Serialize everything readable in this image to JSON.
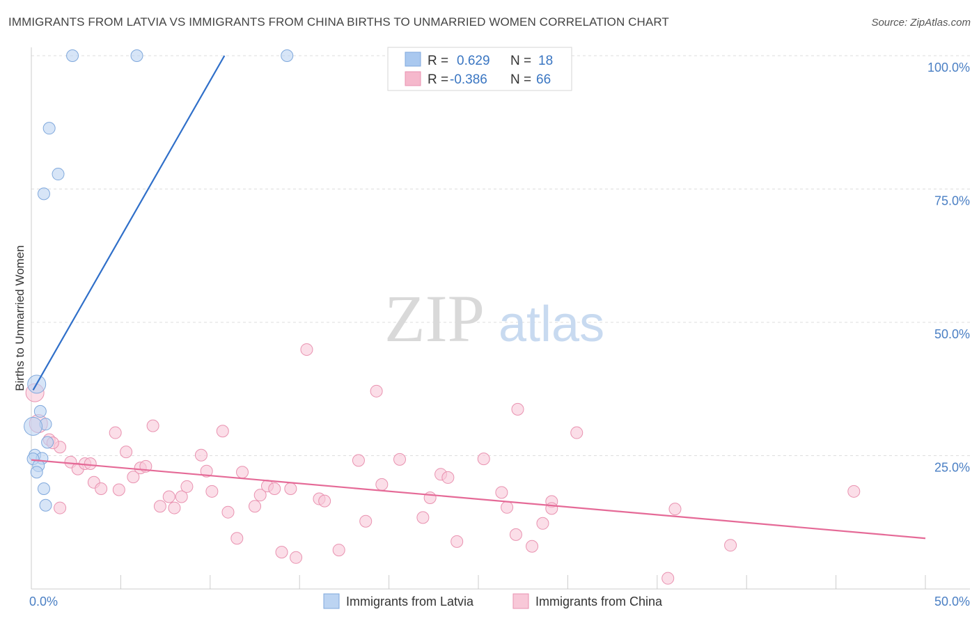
{
  "title": "IMMIGRANTS FROM LATVIA VS IMMIGRANTS FROM CHINA BIRTHS TO UNMARRIED WOMEN CORRELATION CHART",
  "source": "Source: ZipAtlas.com",
  "watermark": {
    "zip": "ZIP",
    "atlas": "atlas"
  },
  "legend": {
    "rows": [
      {
        "r_label": "R =",
        "r_value": "0.629",
        "n_label": "N =",
        "n_value": "18",
        "color": "#a9c8ef"
      },
      {
        "r_label": "R =",
        "r_value": "-0.386",
        "n_label": "N =",
        "n_value": "66",
        "color": "#f5b8cc"
      }
    ]
  },
  "colors": {
    "latvia_fill": "#bcd4f2",
    "latvia_stroke": "#7fa8dc",
    "latvia_line": "#2f6fc9",
    "china_fill": "#f8c8d8",
    "china_stroke": "#e992b0",
    "china_line": "#e56a97",
    "grid": "#dddddd",
    "axis_label": "#4a7fc4"
  },
  "chart_data": {
    "type": "scatter",
    "xlabel": "",
    "ylabel": "Births to Unmarried Women",
    "xlim": [
      0,
      50
    ],
    "ylim": [
      0,
      100
    ],
    "x_tick_labels": [
      "0.0%",
      "50.0%"
    ],
    "y_ticks": [
      25,
      50,
      75,
      100
    ],
    "y_tick_labels": [
      "25.0%",
      "50.0%",
      "75.0%",
      "100.0%"
    ],
    "grid": true,
    "series": [
      {
        "name": "Immigrants from Latvia",
        "R": 0.629,
        "N": 18,
        "points": [
          [
            2.3,
            100
          ],
          [
            5.9,
            100
          ],
          [
            14.3,
            100
          ],
          [
            1.0,
            86.4
          ],
          [
            1.5,
            77.8
          ],
          [
            0.7,
            74.1
          ],
          [
            0.3,
            38.4
          ],
          [
            0.5,
            33.3
          ],
          [
            0.8,
            30.9
          ],
          [
            0.1,
            30.5
          ],
          [
            0.9,
            27.5
          ],
          [
            0.2,
            25.1
          ],
          [
            0.6,
            24.5
          ],
          [
            0.1,
            24.4
          ],
          [
            0.4,
            23.1
          ],
          [
            0.3,
            21.9
          ],
          [
            0.7,
            18.8
          ],
          [
            0.8,
            15.7
          ]
        ],
        "trend": {
          "x1": 0.1,
          "y1": 37.3,
          "x2": 10.8,
          "y2": 100
        }
      },
      {
        "name": "Immigrants from China",
        "R": -0.386,
        "N": 66,
        "points": [
          [
            0.2,
            36.8
          ],
          [
            0.4,
            31.0
          ],
          [
            1.0,
            28.0
          ],
          [
            1.6,
            26.6
          ],
          [
            1.2,
            27.4
          ],
          [
            2.2,
            23.8
          ],
          [
            2.6,
            22.5
          ],
          [
            3.0,
            23.5
          ],
          [
            3.3,
            23.5
          ],
          [
            3.5,
            20.0
          ],
          [
            3.9,
            18.8
          ],
          [
            4.7,
            29.3
          ],
          [
            4.9,
            18.6
          ],
          [
            5.3,
            25.7
          ],
          [
            5.7,
            21.0
          ],
          [
            6.1,
            22.7
          ],
          [
            6.4,
            23.0
          ],
          [
            6.8,
            30.6
          ],
          [
            7.2,
            15.5
          ],
          [
            7.7,
            17.3
          ],
          [
            8.0,
            15.2
          ],
          [
            8.4,
            17.3
          ],
          [
            8.7,
            19.2
          ],
          [
            9.5,
            25.1
          ],
          [
            9.8,
            22.1
          ],
          [
            10.1,
            18.3
          ],
          [
            10.7,
            29.6
          ],
          [
            11.0,
            14.4
          ],
          [
            11.5,
            9.5
          ],
          [
            11.8,
            21.9
          ],
          [
            12.5,
            15.5
          ],
          [
            12.8,
            17.6
          ],
          [
            13.2,
            19.3
          ],
          [
            13.6,
            18.8
          ],
          [
            14.0,
            6.9
          ],
          [
            14.5,
            18.8
          ],
          [
            14.8,
            5.9
          ],
          [
            15.4,
            44.9
          ],
          [
            16.1,
            16.9
          ],
          [
            16.4,
            16.5
          ],
          [
            17.2,
            7.3
          ],
          [
            18.3,
            24.1
          ],
          [
            18.7,
            12.7
          ],
          [
            19.3,
            37.1
          ],
          [
            19.6,
            19.6
          ],
          [
            20.6,
            24.3
          ],
          [
            21.9,
            13.4
          ],
          [
            22.3,
            17.1
          ],
          [
            22.9,
            21.5
          ],
          [
            23.3,
            20.9
          ],
          [
            23.8,
            8.9
          ],
          [
            25.3,
            24.4
          ],
          [
            26.3,
            18.1
          ],
          [
            26.6,
            15.3
          ],
          [
            27.1,
            10.2
          ],
          [
            27.2,
            33.7
          ],
          [
            28.0,
            8.0
          ],
          [
            28.6,
            12.3
          ],
          [
            29.1,
            16.4
          ],
          [
            29.1,
            15.1
          ],
          [
            30.5,
            29.3
          ],
          [
            35.6,
            2.0
          ],
          [
            36.0,
            15.0
          ],
          [
            39.1,
            8.2
          ],
          [
            46.0,
            18.3
          ],
          [
            1.6,
            15.2
          ]
        ],
        "trend": {
          "x1": 0.0,
          "y1": 24.2,
          "x2": 50.0,
          "y2": 9.5
        }
      }
    ]
  },
  "bottom_legend": [
    {
      "label": "Immigrants from Latvia",
      "color": "#bcd4f2"
    },
    {
      "label": "Immigrants from China",
      "color": "#f8c8d8"
    }
  ]
}
